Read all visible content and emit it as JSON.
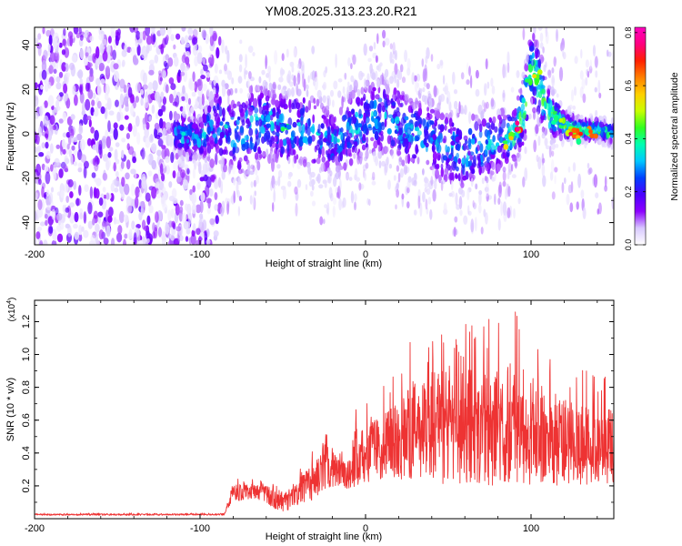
{
  "title": "YM08.2025.313.23.20.R21",
  "chart_data": [
    {
      "type": "heatmap",
      "title": "YM08.2025.313.23.20.R21",
      "xlabel": "Height of straight line (km)",
      "ylabel": "Frequency (Hz)",
      "xlim": [
        -200,
        150
      ],
      "ylim": [
        -50,
        48
      ],
      "xticks": [
        -200,
        -100,
        0,
        100
      ],
      "yticks": [
        -40,
        -20,
        0,
        20,
        40
      ],
      "xtick_labels": [
        "-200",
        "-100",
        "0",
        "100"
      ],
      "ytick_labels": [
        "-40",
        "-20",
        "0",
        "20",
        "40"
      ],
      "noise_region_km": [
        -200,
        -91
      ],
      "ridge": {
        "x": [
          -115,
          -100,
          -90,
          -80,
          -70,
          -60,
          -50,
          -40,
          -30,
          -20,
          -10,
          0,
          10,
          20,
          30,
          40,
          50,
          60,
          70,
          80,
          90,
          95,
          100,
          105,
          110,
          120,
          130,
          140,
          150
        ],
        "y": [
          0,
          -2,
          4,
          0,
          2,
          6,
          2,
          3,
          0,
          -4,
          2,
          6,
          8,
          4,
          0,
          -2,
          -6,
          -8,
          -6,
          -4,
          0,
          8,
          30,
          22,
          10,
          4,
          2,
          2,
          0
        ],
        "spread": [
          6,
          6,
          12,
          14,
          14,
          12,
          12,
          12,
          12,
          10,
          12,
          12,
          12,
          12,
          12,
          12,
          12,
          12,
          12,
          10,
          8,
          10,
          12,
          12,
          8,
          4,
          3,
          3,
          3
        ]
      },
      "hot_spots": [
        {
          "x": 92,
          "y": 2,
          "amp": 0.78
        },
        {
          "x": 124,
          "y": 0,
          "amp": 0.74
        },
        {
          "x": 130,
          "y": 0,
          "amp": 0.7
        },
        {
          "x": 136,
          "y": 1,
          "amp": 0.66
        },
        {
          "x": 88,
          "y": -2,
          "amp": 0.58
        },
        {
          "x": 102,
          "y": 26,
          "amp": 0.55
        },
        {
          "x": 118,
          "y": 6,
          "amp": 0.5
        },
        {
          "x": -50,
          "y": 2,
          "amp": 0.42
        },
        {
          "x": -110,
          "y": 0,
          "amp": 0.35
        }
      ],
      "colorbar": {
        "label": "Normalized spectral amplitude",
        "range": [
          0.0,
          0.82
        ],
        "ticks": [
          0.0,
          0.2,
          0.4,
          0.6,
          0.8
        ],
        "tick_labels": [
          "0.0",
          "0.2",
          "0.4",
          "0.6",
          "0.8"
        ],
        "colors": [
          "#ffffff",
          "#d8c8ff",
          "#8c00ff",
          "#4b00ff",
          "#0040ff",
          "#00c8ff",
          "#00ffb0",
          "#30ff20",
          "#c8ff00",
          "#ffd000",
          "#ff8000",
          "#ff2000",
          "#ff0080",
          "#ff00c0"
        ]
      }
    },
    {
      "type": "area",
      "xlabel": "Height of straight line (km)",
      "ylabel": "SNR (10 * v/v)",
      "y_multiplier_label": "(x10",
      "y_multiplier_exp": "4",
      "y_multiplier_close": ")",
      "xlim": [
        -200,
        150
      ],
      "ylim": [
        0.0,
        1.33
      ],
      "xticks": [
        -200,
        -100,
        0,
        100
      ],
      "xtick_labels": [
        "-200",
        "-100",
        "0",
        "100"
      ],
      "yticks": [
        0.2,
        0.4,
        0.6,
        0.8,
        1.0,
        1.2
      ],
      "ytick_labels": [
        "0.2",
        "0.4",
        "0.6",
        "0.8",
        "1.0",
        "1.2"
      ],
      "color": "#ee3333",
      "envelope": {
        "x": [
          -200,
          -90,
          -85,
          -80,
          -70,
          -60,
          -55,
          -50,
          -45,
          -30,
          -25,
          -20,
          -15,
          -10,
          -5,
          0,
          10,
          20,
          30,
          40,
          50,
          60,
          70,
          80,
          90,
          100,
          110,
          120,
          130,
          140,
          150
        ],
        "base": [
          0.02,
          0.02,
          0.02,
          0.1,
          0.12,
          0.1,
          0.06,
          0.04,
          0.06,
          0.12,
          0.16,
          0.18,
          0.2,
          0.18,
          0.2,
          0.22,
          0.24,
          0.24,
          0.24,
          0.22,
          0.2,
          0.22,
          0.2,
          0.2,
          0.22,
          0.2,
          0.2,
          0.2,
          0.2,
          0.18,
          0.2
        ],
        "mean": [
          0.025,
          0.025,
          0.03,
          0.17,
          0.18,
          0.15,
          0.13,
          0.12,
          0.13,
          0.28,
          0.35,
          0.3,
          0.28,
          0.22,
          0.38,
          0.4,
          0.42,
          0.45,
          0.5,
          0.52,
          0.55,
          0.58,
          0.56,
          0.55,
          0.52,
          0.52,
          0.5,
          0.45,
          0.42,
          0.4,
          0.4
        ],
        "peak": [
          0.035,
          0.035,
          0.04,
          0.26,
          0.25,
          0.24,
          0.22,
          0.18,
          0.22,
          0.45,
          0.55,
          0.5,
          0.44,
          0.4,
          0.72,
          0.7,
          0.8,
          0.92,
          1.18,
          1.2,
          1.25,
          1.2,
          1.25,
          1.3,
          1.33,
          1.18,
          1.0,
          0.98,
          0.92,
          0.88,
          0.9
        ]
      }
    }
  ]
}
